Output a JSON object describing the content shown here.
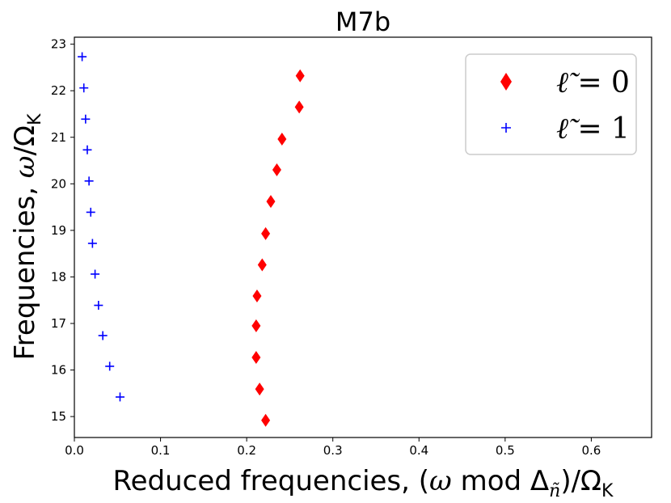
{
  "chart_data": {
    "type": "scatter",
    "title": "M7b",
    "xlabel": "Reduced frequencies, (ω mod Δñ)/ΩK",
    "xlabel_parts": {
      "pre": "Reduced frequencies, (",
      "omega": "ω",
      "mod": " mod ",
      "delta": "Δ",
      "delta_sub": "ñ",
      "post": ")/Ω",
      "post_sub": "K"
    },
    "ylabel": "Frequencies, ω/ΩK",
    "ylabel_parts": {
      "pre": "Frequencies, ",
      "omega": "ω",
      "mid": "/Ω",
      "sub": "K"
    },
    "xlim": [
      0,
      0.67
    ],
    "ylim": [
      14.55,
      23.15
    ],
    "xticks": [
      "0.0",
      "0.1",
      "0.2",
      "0.3",
      "0.4",
      "0.5",
      "0.6"
    ],
    "yticks": [
      "15",
      "16",
      "17",
      "18",
      "19",
      "20",
      "21",
      "22",
      "23"
    ],
    "legend_position": "top-right",
    "series": [
      {
        "name": "ℓ̃ = 0",
        "legend_label": {
          "symbol": "ℓ̃",
          "rest": " = 0"
        },
        "marker": "diamond",
        "color": "#ff0000",
        "x": [
          0.222,
          0.215,
          0.211,
          0.211,
          0.212,
          0.218,
          0.222,
          0.228,
          0.235,
          0.241,
          0.261,
          0.262
        ],
        "y": [
          14.92,
          15.59,
          16.27,
          16.95,
          17.59,
          18.26,
          18.93,
          19.62,
          20.3,
          20.96,
          21.65,
          22.32
        ]
      },
      {
        "name": "ℓ̃ = 1",
        "legend_label": {
          "symbol": "ℓ̃",
          "rest": " = 1"
        },
        "marker": "plus",
        "color": "#0000ff",
        "x": [
          0.053,
          0.041,
          0.033,
          0.028,
          0.024,
          0.021,
          0.019,
          0.017,
          0.015,
          0.013,
          0.011,
          0.009
        ],
        "y": [
          15.42,
          16.08,
          16.74,
          17.39,
          18.06,
          18.72,
          19.39,
          20.06,
          20.73,
          21.39,
          22.06,
          22.73
        ]
      }
    ]
  }
}
